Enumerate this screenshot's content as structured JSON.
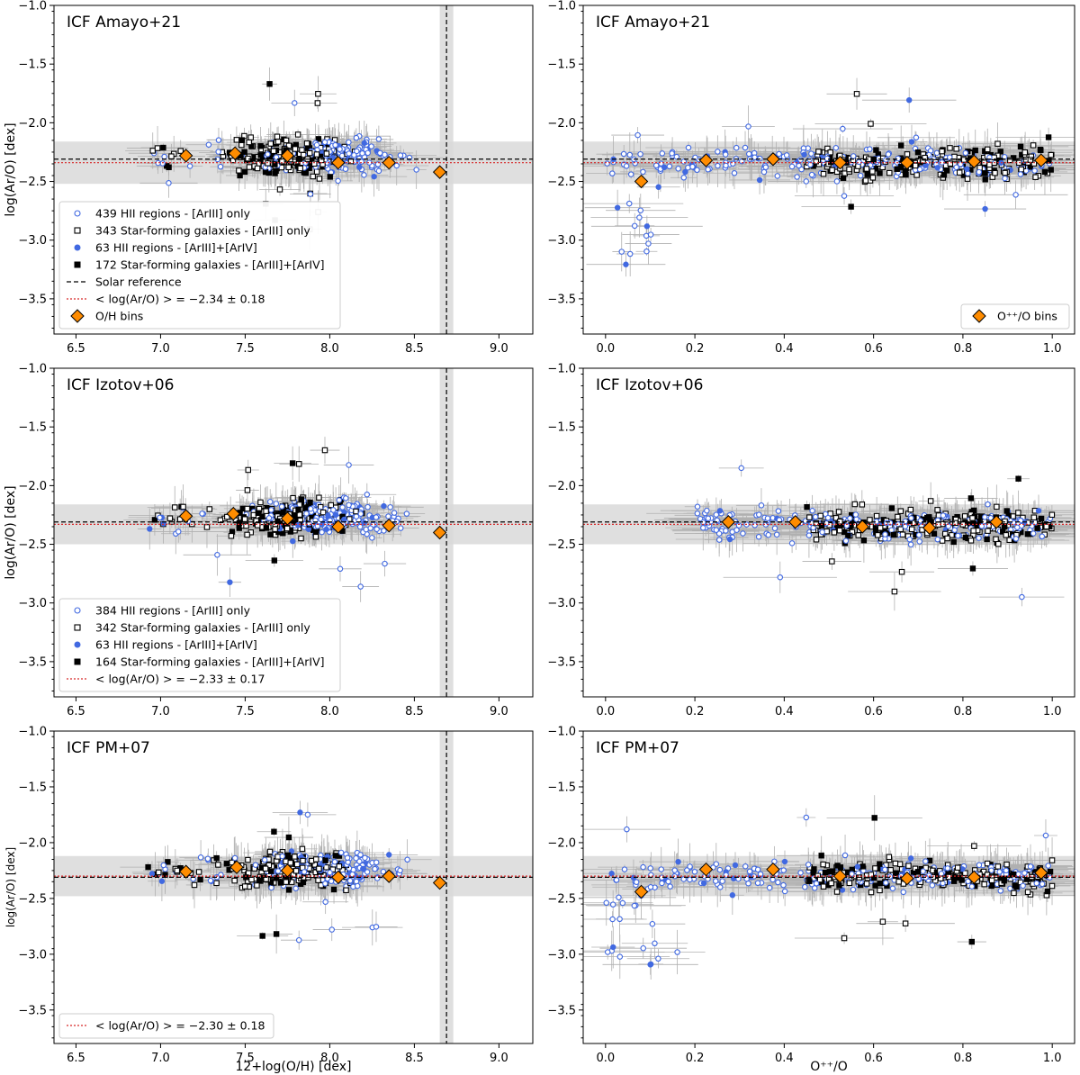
{
  "figure": {
    "xlabel_left": "12+log(O/H) [dex]",
    "xlabel_right": "O⁺⁺/O",
    "ylabel": "log(Ar/O) [dex]"
  },
  "colors": {
    "hii": "#4169e1",
    "sfg": "#000000",
    "error": "#b0b0b0",
    "mean": "#d62728",
    "bins_fill": "#ff8c00",
    "band": "#d9d9d9"
  },
  "chart_data": [
    {
      "id": "amayo-oh",
      "type": "scatter",
      "title": "ICF Amayo+21",
      "xlabel": "",
      "ylabel": "log(Ar/O) [dex]",
      "xlim": [
        6.37,
        9.2
      ],
      "ylim": [
        -3.8,
        -1.0
      ],
      "xticks": [
        6.5,
        7.0,
        7.5,
        8.0,
        8.5,
        9.0
      ],
      "yticks": [
        -3.5,
        -3.0,
        -2.5,
        -2.0,
        -1.5,
        -1.0
      ],
      "solar_x": 8.69,
      "solar_y": -2.31,
      "mean": -2.34,
      "std": 0.18,
      "bins_x": [
        7.15,
        7.44,
        7.75,
        8.05,
        8.35,
        8.65
      ],
      "bins_y": [
        -2.28,
        -2.26,
        -2.28,
        -2.34,
        -2.34,
        -2.42
      ],
      "legend_loc": "lower-left",
      "legend": [
        {
          "marker": "hii-open",
          "label": "439 HII regions - [ArIII] only"
        },
        {
          "marker": "sfg-open",
          "label": "343 Star-forming galaxies - [ArIII] only"
        },
        {
          "marker": "hii-filled",
          "label": "63 HII regions - [ArIII]+[ArIV]"
        },
        {
          "marker": "sfg-filled",
          "label": "172 Star-forming galaxies - [ArIII]+[ArIV]"
        },
        {
          "marker": "solar",
          "label": "Solar reference"
        },
        {
          "marker": "mean",
          "label": "< log(Ar/O) > = −2.34 ± 0.18"
        },
        {
          "marker": "bins",
          "label": "O/H bins"
        }
      ]
    },
    {
      "id": "amayo-ion",
      "type": "scatter",
      "title": "ICF Amayo+21",
      "xlabel": "",
      "ylabel": "",
      "xlim": [
        -0.05,
        1.05
      ],
      "ylim": [
        -3.8,
        -1.0
      ],
      "xticks": [
        0.0,
        0.2,
        0.4,
        0.6,
        0.8,
        1.0
      ],
      "yticks": [
        -3.5,
        -3.0,
        -2.5,
        -2.0,
        -1.5,
        -1.0
      ],
      "solar_y": -2.31,
      "mean": -2.34,
      "std": 0.18,
      "bins_x": [
        0.08,
        0.225,
        0.375,
        0.525,
        0.675,
        0.825,
        0.975
      ],
      "bins_y": [
        -2.5,
        -2.32,
        -2.31,
        -2.34,
        -2.34,
        -2.33,
        -2.32
      ],
      "legend_loc": "lower-right",
      "legend": [
        {
          "marker": "bins",
          "label": "O⁺⁺/O bins"
        }
      ]
    },
    {
      "id": "izotov-oh",
      "type": "scatter",
      "title": "ICF Izotov+06",
      "xlabel": "",
      "ylabel": "log(Ar/O) [dex]",
      "xlim": [
        6.37,
        9.2
      ],
      "ylim": [
        -3.8,
        -1.0
      ],
      "xticks": [
        6.5,
        7.0,
        7.5,
        8.0,
        8.5,
        9.0
      ],
      "yticks": [
        -3.5,
        -3.0,
        -2.5,
        -2.0,
        -1.5,
        -1.0
      ],
      "solar_x": 8.69,
      "solar_y": -2.31,
      "mean": -2.33,
      "std": 0.17,
      "bins_x": [
        7.15,
        7.43,
        7.75,
        8.05,
        8.35,
        8.65
      ],
      "bins_y": [
        -2.26,
        -2.24,
        -2.28,
        -2.35,
        -2.34,
        -2.4
      ],
      "legend_loc": "lower-left",
      "legend": [
        {
          "marker": "hii-open",
          "label": "384 HII regions - [ArIII] only"
        },
        {
          "marker": "sfg-open",
          "label": "342 Star-forming galaxies - [ArIII] only"
        },
        {
          "marker": "hii-filled",
          "label": "63 HII regions - [ArIII]+[ArIV]"
        },
        {
          "marker": "sfg-filled",
          "label": "164 Star-forming galaxies - [ArIII]+[ArIV]"
        },
        {
          "marker": "mean",
          "label": "< log(Ar/O) > = −2.33 ± 0.17"
        }
      ]
    },
    {
      "id": "izotov-ion",
      "type": "scatter",
      "title": "ICF Izotov+06",
      "xlabel": "",
      "ylabel": "",
      "xlim": [
        -0.05,
        1.05
      ],
      "ylim": [
        -3.8,
        -1.0
      ],
      "xticks": [
        0.0,
        0.2,
        0.4,
        0.6,
        0.8,
        1.0
      ],
      "yticks": [
        -3.5,
        -3.0,
        -2.5,
        -2.0,
        -1.5,
        -1.0
      ],
      "solar_y": -2.31,
      "mean": -2.33,
      "std": 0.17,
      "bins_x": [
        0.275,
        0.425,
        0.575,
        0.725,
        0.875
      ],
      "bins_y": [
        -2.31,
        -2.31,
        -2.35,
        -2.36,
        -2.31
      ],
      "legend_loc": "none",
      "legend": []
    },
    {
      "id": "pm-oh",
      "type": "scatter",
      "title": "ICF PM+07",
      "xlabel": "12+log(O/H) [dex]",
      "ylabel": "log(Ar/O) [dex]",
      "xlim": [
        6.37,
        9.2
      ],
      "ylim": [
        -3.8,
        -1.0
      ],
      "xticks": [
        6.5,
        7.0,
        7.5,
        8.0,
        8.5,
        9.0
      ],
      "yticks": [
        -3.5,
        -3.0,
        -2.5,
        -2.0,
        -1.5,
        -1.0
      ],
      "solar_x": 8.69,
      "solar_y": -2.31,
      "mean": -2.3,
      "std": 0.18,
      "bins_x": [
        7.15,
        7.45,
        7.75,
        8.05,
        8.35,
        8.65
      ],
      "bins_y": [
        -2.26,
        -2.22,
        -2.25,
        -2.31,
        -2.3,
        -2.36
      ],
      "legend_loc": "lower-left",
      "legend": [
        {
          "marker": "mean",
          "label": "< log(Ar/O) > = −2.30 ± 0.18"
        }
      ]
    },
    {
      "id": "pm-ion",
      "type": "scatter",
      "title": "ICF PM+07",
      "xlabel": "O⁺⁺/O",
      "ylabel": "",
      "xlim": [
        -0.05,
        1.05
      ],
      "ylim": [
        -3.8,
        -1.0
      ],
      "xticks": [
        0.0,
        0.2,
        0.4,
        0.6,
        0.8,
        1.0
      ],
      "yticks": [
        -3.5,
        -3.0,
        -2.5,
        -2.0,
        -1.5,
        -1.0
      ],
      "solar_y": -2.31,
      "mean": -2.3,
      "std": 0.18,
      "bins_x": [
        0.08,
        0.225,
        0.375,
        0.525,
        0.675,
        0.825,
        0.975
      ],
      "bins_y": [
        -2.44,
        -2.24,
        -2.24,
        -2.3,
        -2.32,
        -2.31,
        -2.27
      ],
      "legend_loc": "none",
      "legend": []
    }
  ]
}
